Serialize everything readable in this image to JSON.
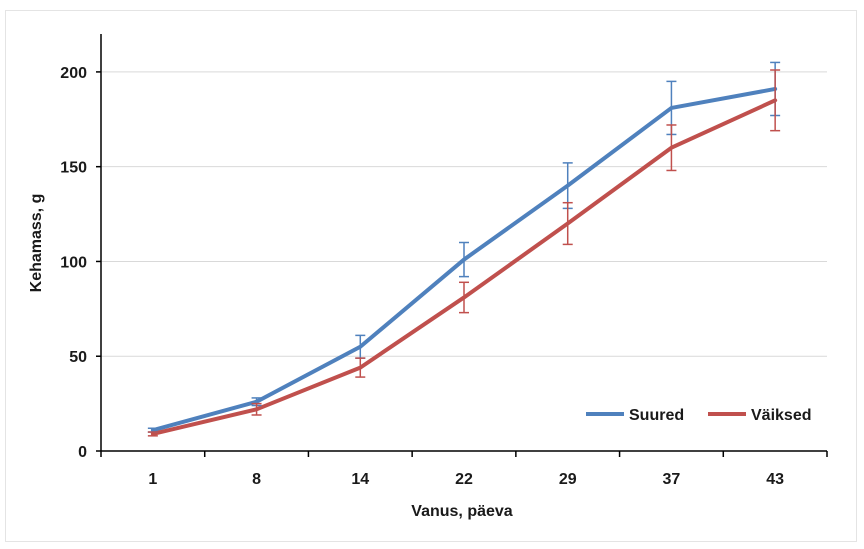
{
  "chart_data": {
    "type": "line",
    "title": "",
    "xlabel": "Vanus, päeva",
    "ylabel": "Kehamass, g",
    "categories": [
      "1",
      "8",
      "14",
      "22",
      "29",
      "37",
      "43"
    ],
    "ylim": [
      0,
      220
    ],
    "yticks": [
      0,
      50,
      100,
      150,
      200
    ],
    "grid": "horizontal",
    "legend": "bottom-right",
    "series": [
      {
        "name": "Suured",
        "color": "#4f81bd",
        "values": [
          11,
          26,
          55,
          101,
          140,
          181,
          191
        ],
        "error": [
          1,
          2,
          6,
          9,
          12,
          14,
          14
        ]
      },
      {
        "name": "Väiksed",
        "color": "#c0504d",
        "values": [
          9,
          22,
          44,
          81,
          120,
          160,
          185
        ],
        "error": [
          1,
          3,
          5,
          8,
          11,
          12,
          16
        ]
      }
    ]
  }
}
